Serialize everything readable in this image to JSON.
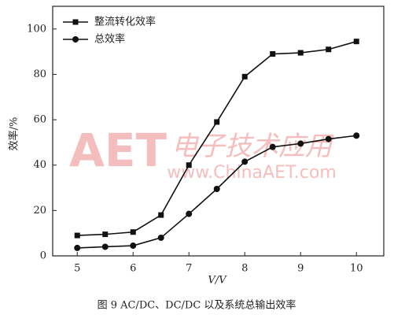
{
  "chart_data": {
    "type": "line",
    "x_label": "V/V",
    "y_label": "效率/%",
    "caption": "图 9  AC/DC、DC/DC 以及系统总输出效率",
    "watermark": [
      "AET",
      "电子技术应用",
      "www.ChinaAET.com"
    ],
    "x": [
      5,
      5.5,
      6,
      6.5,
      7,
      7.5,
      8,
      8.5,
      9,
      9.5,
      10
    ],
    "series": [
      {
        "name": "整流转化效率",
        "color": "#111111",
        "marker": "square",
        "values": [
          9,
          9.5,
          10.5,
          18,
          40,
          59,
          79,
          89,
          89.5,
          91,
          94.5
        ]
      },
      {
        "name": "总效率",
        "color": "#111111",
        "marker": "circle",
        "values": [
          3.5,
          4,
          4.5,
          8,
          18.5,
          29.5,
          41.5,
          48,
          49.5,
          51.5,
          53
        ]
      }
    ],
    "xlim": [
      4.56,
      10.49
    ],
    "xticks": [
      5,
      6,
      7,
      8,
      9,
      10
    ],
    "ylim": [
      0,
      110
    ],
    "yticks": [
      0,
      20,
      40,
      60,
      80,
      100
    ],
    "legend": "upper left",
    "grid": false
  }
}
